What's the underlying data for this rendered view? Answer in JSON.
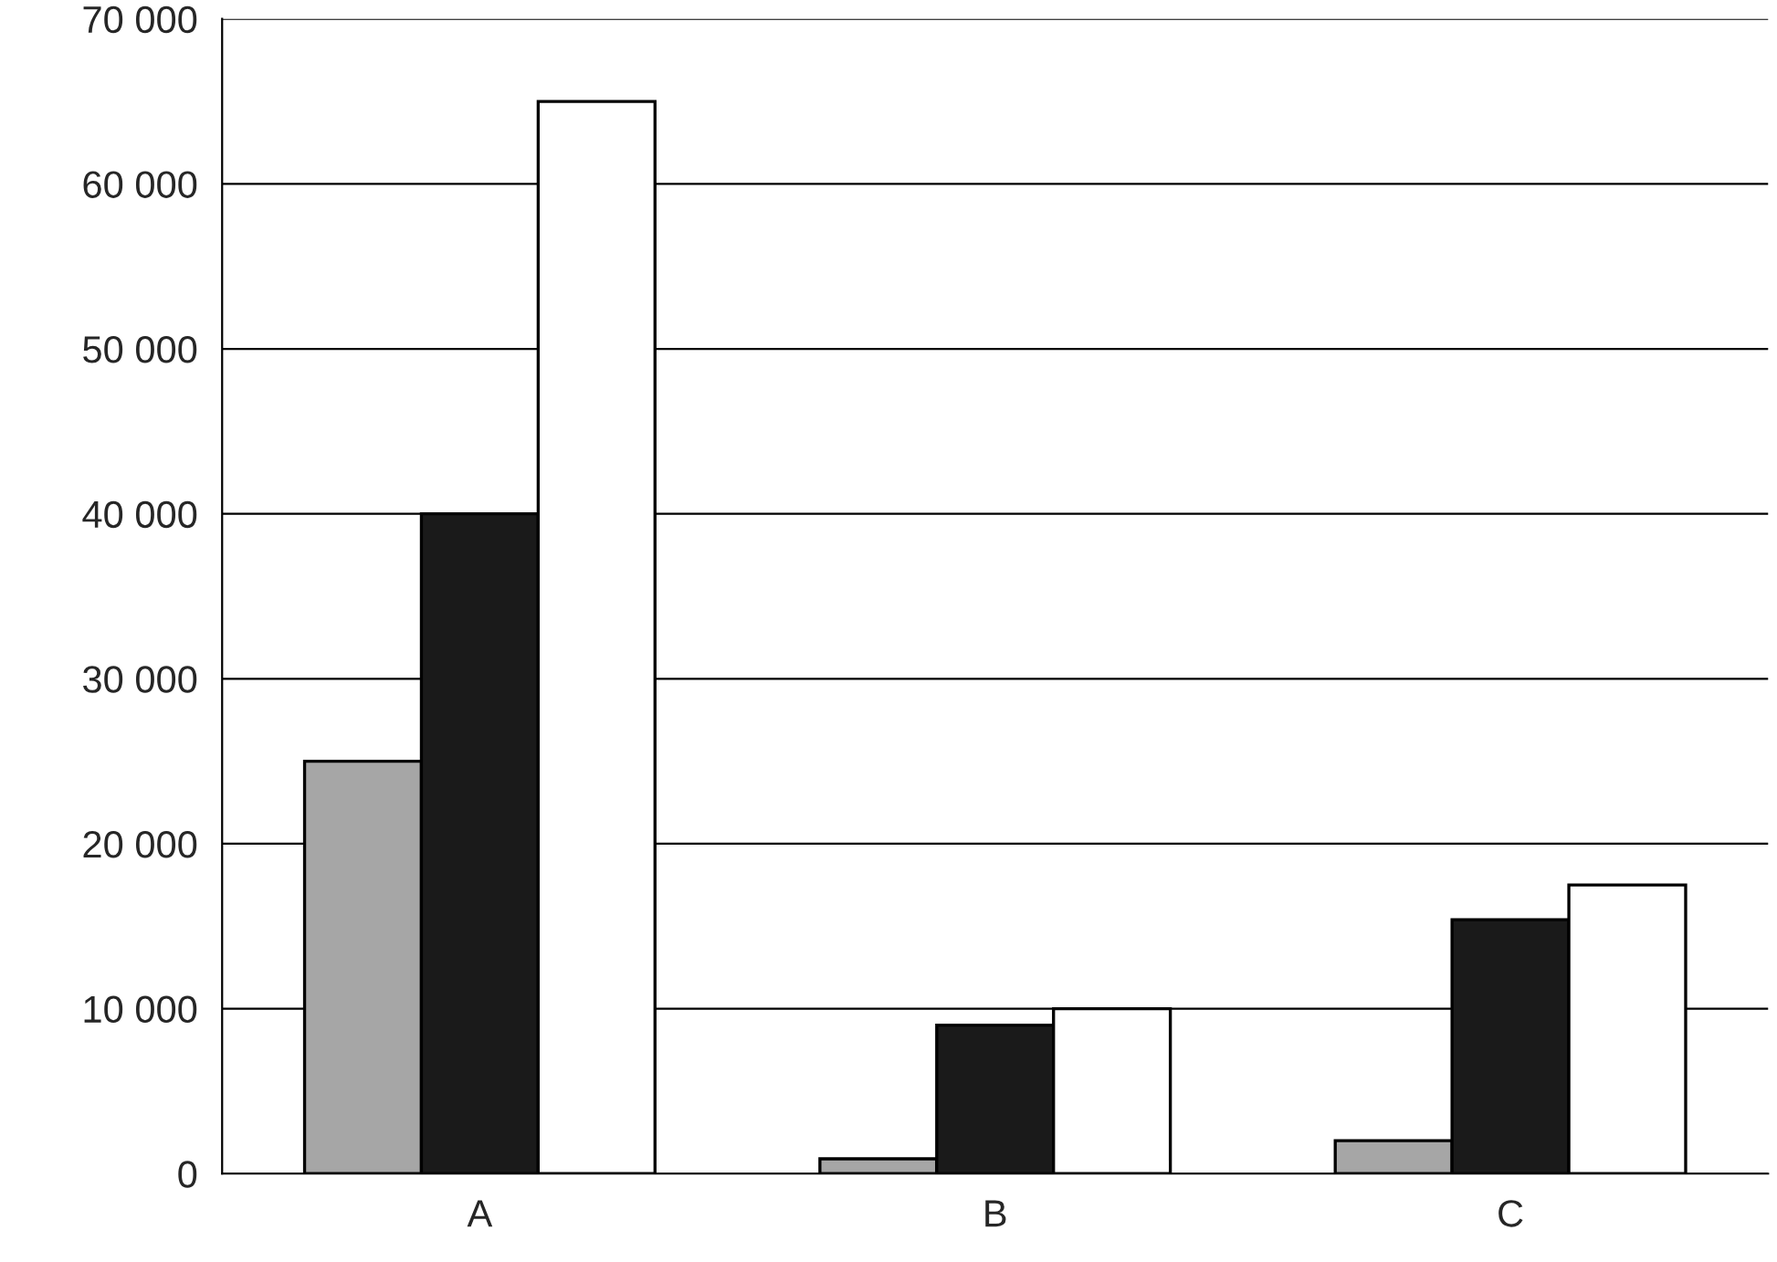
{
  "chart_data": {
    "type": "bar",
    "categories": [
      "A",
      "B",
      "C"
    ],
    "series": [
      {
        "color": "#a6a6a6",
        "values": [
          25000,
          900,
          2000
        ]
      },
      {
        "color": "#1a1a1a",
        "values": [
          40000,
          9000,
          15400
        ]
      },
      {
        "color": "#ffffff",
        "values": [
          65000,
          10000,
          17500
        ]
      }
    ],
    "ylim": [
      0,
      70000
    ],
    "yticks": [
      0,
      {
        "value": 10000,
        "label": "10 000"
      },
      {
        "value": 20000,
        "label": "20 000"
      },
      {
        "value": 30000,
        "label": "30 000"
      },
      {
        "value": 40000,
        "label": "40 000"
      },
      {
        "value": 50000,
        "label": "50 000"
      },
      {
        "value": 60000,
        "label": "60 000"
      },
      {
        "value": 70000,
        "label": "70 000"
      }
    ],
    "grid": "y"
  }
}
